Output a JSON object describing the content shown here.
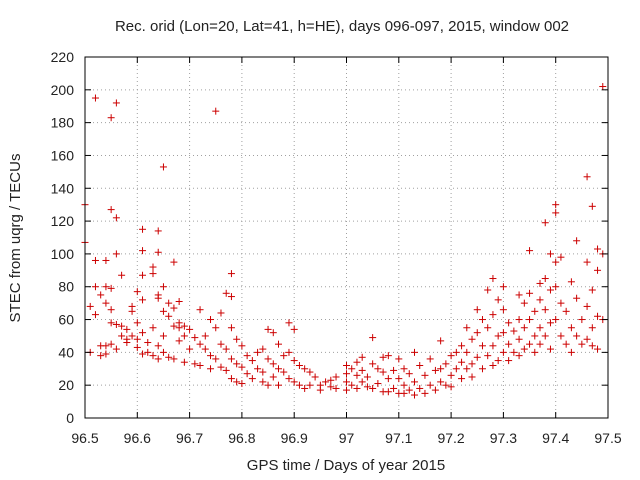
{
  "chart_data": {
    "type": "scatter",
    "title": "Rec. orid (Lon=20, Lat=41, h=HE), days 096-097, 2015, window 002",
    "xlabel": "GPS time / Days of year 2015",
    "ylabel": "STEC from uqrg / TECUs",
    "xlim": [
      96.5,
      97.5
    ],
    "ylim": [
      0,
      220
    ],
    "xticks": [
      "96.5",
      "96.6",
      "96.7",
      "96.8",
      "96.9",
      "97",
      "97.1",
      "97.2",
      "97.3",
      "97.4",
      "97.5"
    ],
    "yticks": [
      "0",
      "20",
      "40",
      "60",
      "80",
      "100",
      "120",
      "140",
      "160",
      "180",
      "200",
      "220"
    ],
    "grid": true,
    "marker": "+",
    "color": "#cc0000",
    "series": [
      {
        "points": [
          [
            96.5,
            130
          ],
          [
            96.5,
            107
          ],
          [
            96.51,
            40
          ],
          [
            96.51,
            68
          ],
          [
            96.52,
            195
          ],
          [
            96.52,
            63
          ],
          [
            96.52,
            80
          ],
          [
            96.52,
            96
          ],
          [
            96.53,
            38
          ],
          [
            96.53,
            44
          ],
          [
            96.53,
            75
          ],
          [
            96.54,
            96
          ],
          [
            96.54,
            80
          ],
          [
            96.54,
            70
          ],
          [
            96.54,
            39
          ],
          [
            96.54,
            44
          ],
          [
            96.55,
            183
          ],
          [
            96.55,
            127
          ],
          [
            96.55,
            79
          ],
          [
            96.55,
            66
          ],
          [
            96.55,
            58
          ],
          [
            96.55,
            45
          ],
          [
            96.56,
            192
          ],
          [
            96.56,
            122
          ],
          [
            96.56,
            100
          ],
          [
            96.56,
            57
          ],
          [
            96.56,
            42
          ],
          [
            96.57,
            56
          ],
          [
            96.57,
            50
          ],
          [
            96.57,
            87
          ],
          [
            96.58,
            48
          ],
          [
            96.58,
            46
          ],
          [
            96.58,
            54
          ],
          [
            96.59,
            68
          ],
          [
            96.59,
            65
          ],
          [
            96.59,
            50
          ],
          [
            96.6,
            77
          ],
          [
            96.6,
            58
          ],
          [
            96.6,
            48
          ],
          [
            96.6,
            43
          ],
          [
            96.61,
            115
          ],
          [
            96.61,
            102
          ],
          [
            96.61,
            87
          ],
          [
            96.61,
            72
          ],
          [
            96.61,
            52
          ],
          [
            96.61,
            39
          ],
          [
            96.62,
            46
          ],
          [
            96.62,
            40
          ],
          [
            96.63,
            92
          ],
          [
            96.63,
            88
          ],
          [
            96.63,
            55
          ],
          [
            96.63,
            38
          ],
          [
            96.64,
            114
          ],
          [
            96.64,
            101
          ],
          [
            96.64,
            75
          ],
          [
            96.64,
            73
          ],
          [
            96.64,
            44
          ],
          [
            96.64,
            36
          ],
          [
            96.65,
            153
          ],
          [
            96.65,
            80
          ],
          [
            96.65,
            65
          ],
          [
            96.65,
            50
          ],
          [
            96.65,
            40
          ],
          [
            96.66,
            70
          ],
          [
            96.66,
            62
          ],
          [
            96.66,
            37
          ],
          [
            96.67,
            95
          ],
          [
            96.67,
            67
          ],
          [
            96.67,
            56
          ],
          [
            96.67,
            36
          ],
          [
            96.68,
            71
          ],
          [
            96.68,
            58
          ],
          [
            96.68,
            55
          ],
          [
            96.68,
            47
          ],
          [
            96.69,
            56
          ],
          [
            96.69,
            50
          ],
          [
            96.69,
            34
          ],
          [
            96.7,
            54
          ],
          [
            96.7,
            42
          ],
          [
            96.71,
            49
          ],
          [
            96.71,
            33
          ],
          [
            96.72,
            66
          ],
          [
            96.72,
            45
          ],
          [
            96.72,
            32
          ],
          [
            96.73,
            50
          ],
          [
            96.73,
            42
          ],
          [
            96.74,
            60
          ],
          [
            96.74,
            38
          ],
          [
            96.74,
            30
          ],
          [
            96.75,
            187
          ],
          [
            96.75,
            55
          ],
          [
            96.75,
            36
          ],
          [
            96.76,
            64
          ],
          [
            96.76,
            45
          ],
          [
            96.76,
            31
          ],
          [
            96.77,
            76
          ],
          [
            96.77,
            42
          ],
          [
            96.77,
            29
          ],
          [
            96.78,
            88
          ],
          [
            96.78,
            74
          ],
          [
            96.78,
            55
          ],
          [
            96.78,
            36
          ],
          [
            96.78,
            24
          ],
          [
            96.79,
            48
          ],
          [
            96.79,
            33
          ],
          [
            96.79,
            22
          ],
          [
            96.8,
            44
          ],
          [
            96.8,
            31
          ],
          [
            96.8,
            21
          ],
          [
            96.81,
            38
          ],
          [
            96.81,
            27
          ],
          [
            96.82,
            35
          ],
          [
            96.82,
            24
          ],
          [
            96.83,
            40
          ],
          [
            96.83,
            30
          ],
          [
            96.84,
            42
          ],
          [
            96.84,
            28
          ],
          [
            96.84,
            22
          ],
          [
            96.85,
            54
          ],
          [
            96.85,
            36
          ],
          [
            96.85,
            20
          ],
          [
            96.86,
            52
          ],
          [
            96.86,
            33
          ],
          [
            96.86,
            25
          ],
          [
            96.87,
            45
          ],
          [
            96.87,
            30
          ],
          [
            96.87,
            20
          ],
          [
            96.88,
            38
          ],
          [
            96.88,
            28
          ],
          [
            96.89,
            58
          ],
          [
            96.89,
            40
          ],
          [
            96.89,
            24
          ],
          [
            96.9,
            54
          ],
          [
            96.9,
            35
          ],
          [
            96.9,
            22
          ],
          [
            96.91,
            32
          ],
          [
            96.91,
            20
          ],
          [
            96.92,
            30
          ],
          [
            96.92,
            18
          ],
          [
            96.93,
            28
          ],
          [
            96.93,
            20
          ],
          [
            96.94,
            25
          ],
          [
            96.95,
            20
          ],
          [
            96.95,
            17
          ],
          [
            96.96,
            22
          ],
          [
            96.97,
            19
          ],
          [
            96.97,
            23
          ],
          [
            96.98,
            25
          ],
          [
            96.98,
            18
          ],
          [
            97.0,
            32
          ],
          [
            97.0,
            27
          ],
          [
            97.0,
            22
          ],
          [
            97.0,
            17
          ],
          [
            97.01,
            30
          ],
          [
            97.01,
            20
          ],
          [
            97.02,
            34
          ],
          [
            97.02,
            26
          ],
          [
            97.02,
            18
          ],
          [
            97.03,
            37
          ],
          [
            97.03,
            29
          ],
          [
            97.03,
            22
          ],
          [
            97.04,
            25
          ],
          [
            97.04,
            19
          ],
          [
            97.05,
            49
          ],
          [
            97.05,
            33
          ],
          [
            97.05,
            18
          ],
          [
            97.06,
            30
          ],
          [
            97.06,
            21
          ],
          [
            97.07,
            37
          ],
          [
            97.07,
            28
          ],
          [
            97.07,
            16
          ],
          [
            97.08,
            38
          ],
          [
            97.08,
            24
          ],
          [
            97.08,
            16
          ],
          [
            97.09,
            29
          ],
          [
            97.09,
            18
          ],
          [
            97.1,
            36
          ],
          [
            97.1,
            24
          ],
          [
            97.1,
            15
          ],
          [
            97.11,
            30
          ],
          [
            97.11,
            20
          ],
          [
            97.11,
            15
          ],
          [
            97.12,
            27
          ],
          [
            97.12,
            17
          ],
          [
            97.13,
            40
          ],
          [
            97.13,
            22
          ],
          [
            97.13,
            14
          ],
          [
            97.14,
            32
          ],
          [
            97.14,
            18
          ],
          [
            97.15,
            26
          ],
          [
            97.15,
            15
          ],
          [
            97.16,
            36
          ],
          [
            97.16,
            20
          ],
          [
            97.17,
            29
          ],
          [
            97.17,
            17
          ],
          [
            97.18,
            47
          ],
          [
            97.18,
            30
          ],
          [
            97.18,
            22
          ],
          [
            97.19,
            33
          ],
          [
            97.19,
            20
          ],
          [
            97.2,
            38
          ],
          [
            97.2,
            26
          ],
          [
            97.2,
            19
          ],
          [
            97.21,
            40
          ],
          [
            97.21,
            30
          ],
          [
            97.22,
            44
          ],
          [
            97.22,
            34
          ],
          [
            97.22,
            24
          ],
          [
            97.23,
            55
          ],
          [
            97.23,
            40
          ],
          [
            97.23,
            30
          ],
          [
            97.24,
            48
          ],
          [
            97.24,
            33
          ],
          [
            97.24,
            25
          ],
          [
            97.25,
            66
          ],
          [
            97.25,
            52
          ],
          [
            97.25,
            37
          ],
          [
            97.26,
            60
          ],
          [
            97.26,
            44
          ],
          [
            97.26,
            30
          ],
          [
            97.27,
            78
          ],
          [
            97.27,
            55
          ],
          [
            97.27,
            38
          ],
          [
            97.28,
            85
          ],
          [
            97.28,
            63
          ],
          [
            97.28,
            44
          ],
          [
            97.28,
            32
          ],
          [
            97.29,
            72
          ],
          [
            97.29,
            50
          ],
          [
            97.29,
            35
          ],
          [
            97.3,
            80
          ],
          [
            97.3,
            66
          ],
          [
            97.3,
            52
          ],
          [
            97.3,
            40
          ],
          [
            97.31,
            58
          ],
          [
            97.31,
            45
          ],
          [
            97.31,
            35
          ],
          [
            97.32,
            53
          ],
          [
            97.32,
            40
          ],
          [
            97.33,
            75
          ],
          [
            97.33,
            60
          ],
          [
            97.33,
            48
          ],
          [
            97.33,
            38
          ],
          [
            97.34,
            70
          ],
          [
            97.34,
            55
          ],
          [
            97.34,
            42
          ],
          [
            97.35,
            102
          ],
          [
            97.35,
            76
          ],
          [
            97.35,
            60
          ],
          [
            97.35,
            45
          ],
          [
            97.36,
            65
          ],
          [
            97.36,
            50
          ],
          [
            97.36,
            40
          ],
          [
            97.37,
            82
          ],
          [
            97.37,
            72
          ],
          [
            97.37,
            55
          ],
          [
            97.37,
            45
          ],
          [
            97.38,
            119
          ],
          [
            97.38,
            85
          ],
          [
            97.38,
            66
          ],
          [
            97.38,
            50
          ],
          [
            97.39,
            100
          ],
          [
            97.39,
            78
          ],
          [
            97.39,
            58
          ],
          [
            97.39,
            42
          ],
          [
            97.4,
            130
          ],
          [
            97.4,
            125
          ],
          [
            97.4,
            95
          ],
          [
            97.4,
            80
          ],
          [
            97.4,
            60
          ],
          [
            97.41,
            98
          ],
          [
            97.41,
            70
          ],
          [
            97.41,
            50
          ],
          [
            97.42,
            65
          ],
          [
            97.42,
            45
          ],
          [
            97.43,
            83
          ],
          [
            97.43,
            55
          ],
          [
            97.43,
            40
          ],
          [
            97.44,
            108
          ],
          [
            97.44,
            73
          ],
          [
            97.44,
            50
          ],
          [
            97.45,
            60
          ],
          [
            97.45,
            45
          ],
          [
            97.46,
            147
          ],
          [
            97.46,
            95
          ],
          [
            97.46,
            68
          ],
          [
            97.46,
            48
          ],
          [
            97.47,
            129
          ],
          [
            97.47,
            78
          ],
          [
            97.47,
            55
          ],
          [
            97.47,
            44
          ],
          [
            97.48,
            103
          ],
          [
            97.48,
            90
          ],
          [
            97.48,
            62
          ],
          [
            97.48,
            42
          ],
          [
            97.49,
            202
          ],
          [
            97.49,
            100
          ],
          [
            97.49,
            60
          ]
        ]
      }
    ]
  }
}
